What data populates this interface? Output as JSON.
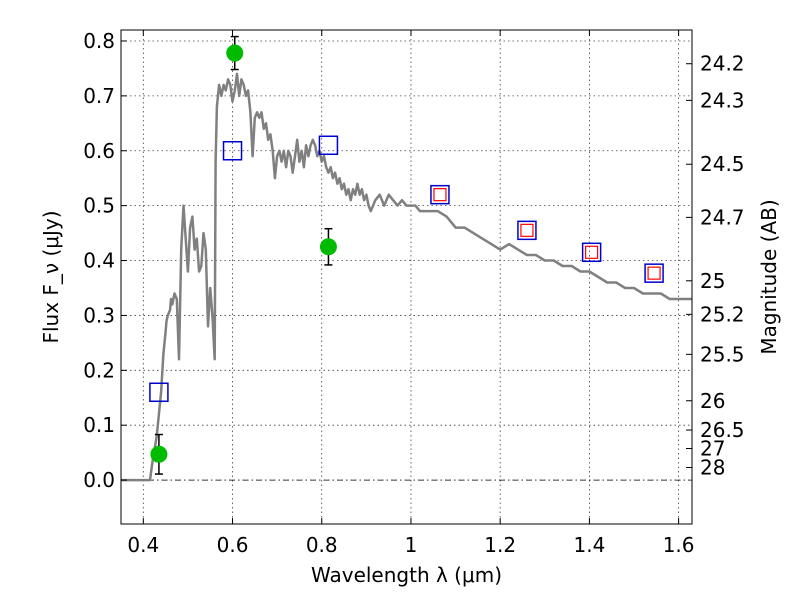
{
  "chart_data": {
    "type": "scatter",
    "title": "",
    "xlabel": "Wavelength λ (μm)",
    "ylabel": "Flux F_ν (μJy)",
    "ylabel_right": "Magnitude (AB)",
    "xlim": [
      0.35,
      1.63
    ],
    "ylim": [
      -0.08,
      0.82
    ],
    "grid": true,
    "x_ticks": [
      {
        "value": 0.4,
        "label": "0.4"
      },
      {
        "value": 0.6,
        "label": "0.6"
      },
      {
        "value": 0.8,
        "label": "0.8"
      },
      {
        "value": 1.0,
        "label": "1"
      },
      {
        "value": 1.2,
        "label": "1.2"
      },
      {
        "value": 1.4,
        "label": "1.4"
      },
      {
        "value": 1.6,
        "label": "1.6"
      }
    ],
    "y_ticks": [
      {
        "value": 0.0,
        "label": "0.0"
      },
      {
        "value": 0.1,
        "label": "0.1"
      },
      {
        "value": 0.2,
        "label": "0.2"
      },
      {
        "value": 0.3,
        "label": "0.3"
      },
      {
        "value": 0.4,
        "label": "0.4"
      },
      {
        "value": 0.5,
        "label": "0.5"
      },
      {
        "value": 0.6,
        "label": "0.6"
      },
      {
        "value": 0.7,
        "label": "0.7"
      },
      {
        "value": 0.8,
        "label": "0.8"
      }
    ],
    "right_ticks": [
      {
        "label": "24.2"
      },
      {
        "label": "24.3"
      },
      {
        "label": "24.5"
      },
      {
        "label": "24.7"
      },
      {
        "label": "25"
      },
      {
        "label": "25.2"
      },
      {
        "label": "25.5"
      },
      {
        "label": "26"
      },
      {
        "label": "26.5"
      },
      {
        "label": "27"
      },
      {
        "label": "28"
      }
    ],
    "series": [
      {
        "kind": "line",
        "color": "#808080",
        "x": [
          0.35,
          0.415,
          0.42,
          0.43,
          0.44,
          0.445,
          0.45,
          0.452,
          0.455,
          0.46,
          0.462,
          0.465,
          0.47,
          0.475,
          0.48,
          0.485,
          0.49,
          0.495,
          0.5,
          0.505,
          0.51,
          0.515,
          0.52,
          0.525,
          0.53,
          0.535,
          0.54,
          0.545,
          0.55,
          0.555,
          0.56,
          0.562,
          0.565,
          0.57,
          0.575,
          0.58,
          0.585,
          0.59,
          0.595,
          0.6,
          0.605,
          0.61,
          0.615,
          0.62,
          0.625,
          0.63,
          0.635,
          0.64,
          0.645,
          0.65,
          0.655,
          0.66,
          0.665,
          0.67,
          0.675,
          0.68,
          0.685,
          0.69,
          0.695,
          0.7,
          0.705,
          0.71,
          0.715,
          0.72,
          0.725,
          0.73,
          0.735,
          0.74,
          0.745,
          0.75,
          0.755,
          0.76,
          0.765,
          0.77,
          0.775,
          0.78,
          0.785,
          0.79,
          0.795,
          0.8,
          0.805,
          0.81,
          0.815,
          0.82,
          0.825,
          0.83,
          0.835,
          0.84,
          0.845,
          0.85,
          0.855,
          0.86,
          0.865,
          0.87,
          0.875,
          0.88,
          0.885,
          0.89,
          0.895,
          0.9,
          0.905,
          0.91,
          0.92,
          0.93,
          0.94,
          0.95,
          0.96,
          0.97,
          0.98,
          0.99,
          1.0,
          1.01,
          1.02,
          1.04,
          1.06,
          1.08,
          1.1,
          1.12,
          1.14,
          1.16,
          1.18,
          1.2,
          1.22,
          1.24,
          1.26,
          1.28,
          1.3,
          1.32,
          1.34,
          1.36,
          1.38,
          1.4,
          1.42,
          1.44,
          1.46,
          1.48,
          1.5,
          1.52,
          1.54,
          1.56,
          1.58,
          1.6,
          1.63
        ],
        "y": [
          0.0,
          0.0,
          0.03,
          0.08,
          0.16,
          0.23,
          0.27,
          0.29,
          0.3,
          0.31,
          0.33,
          0.32,
          0.34,
          0.33,
          0.22,
          0.42,
          0.5,
          0.44,
          0.38,
          0.46,
          0.48,
          0.42,
          0.44,
          0.38,
          0.39,
          0.45,
          0.42,
          0.28,
          0.35,
          0.3,
          0.22,
          0.58,
          0.68,
          0.72,
          0.7,
          0.72,
          0.71,
          0.73,
          0.72,
          0.69,
          0.71,
          0.74,
          0.7,
          0.73,
          0.72,
          0.7,
          0.71,
          0.67,
          0.59,
          0.66,
          0.67,
          0.66,
          0.67,
          0.64,
          0.65,
          0.62,
          0.63,
          0.6,
          0.55,
          0.59,
          0.6,
          0.58,
          0.6,
          0.57,
          0.6,
          0.59,
          0.56,
          0.59,
          0.62,
          0.58,
          0.6,
          0.57,
          0.61,
          0.59,
          0.61,
          0.62,
          0.61,
          0.59,
          0.6,
          0.58,
          0.59,
          0.57,
          0.56,
          0.57,
          0.55,
          0.56,
          0.54,
          0.55,
          0.53,
          0.54,
          0.52,
          0.53,
          0.51,
          0.53,
          0.52,
          0.54,
          0.52,
          0.53,
          0.51,
          0.52,
          0.5,
          0.49,
          0.51,
          0.52,
          0.5,
          0.52,
          0.51,
          0.5,
          0.51,
          0.5,
          0.5,
          0.5,
          0.49,
          0.49,
          0.49,
          0.48,
          0.46,
          0.46,
          0.45,
          0.44,
          0.43,
          0.42,
          0.43,
          0.42,
          0.41,
          0.41,
          0.4,
          0.4,
          0.39,
          0.39,
          0.38,
          0.38,
          0.37,
          0.36,
          0.36,
          0.35,
          0.35,
          0.34,
          0.34,
          0.34,
          0.33,
          0.33,
          0.33
        ]
      },
      {
        "kind": "errorbar",
        "color": "#00bb00",
        "points": [
          {
            "x": 0.435,
            "y": 0.047,
            "err": 0.036
          },
          {
            "x": 0.605,
            "y": 0.778,
            "err": 0.03
          },
          {
            "x": 0.815,
            "y": 0.425,
            "err": 0.033
          }
        ]
      },
      {
        "kind": "square",
        "color": "#0000cc",
        "points": [
          {
            "x": 0.435,
            "y": 0.16
          },
          {
            "x": 0.6,
            "y": 0.6
          },
          {
            "x": 0.815,
            "y": 0.61
          },
          {
            "x": 1.065,
            "y": 0.52
          },
          {
            "x": 1.26,
            "y": 0.455
          },
          {
            "x": 1.405,
            "y": 0.415
          },
          {
            "x": 1.545,
            "y": 0.377
          }
        ]
      },
      {
        "kind": "small-square",
        "color": "#ff0000",
        "points": [
          {
            "x": 1.065,
            "y": 0.52
          },
          {
            "x": 1.26,
            "y": 0.455
          },
          {
            "x": 1.405,
            "y": 0.415
          },
          {
            "x": 1.545,
            "y": 0.377
          }
        ]
      }
    ]
  }
}
